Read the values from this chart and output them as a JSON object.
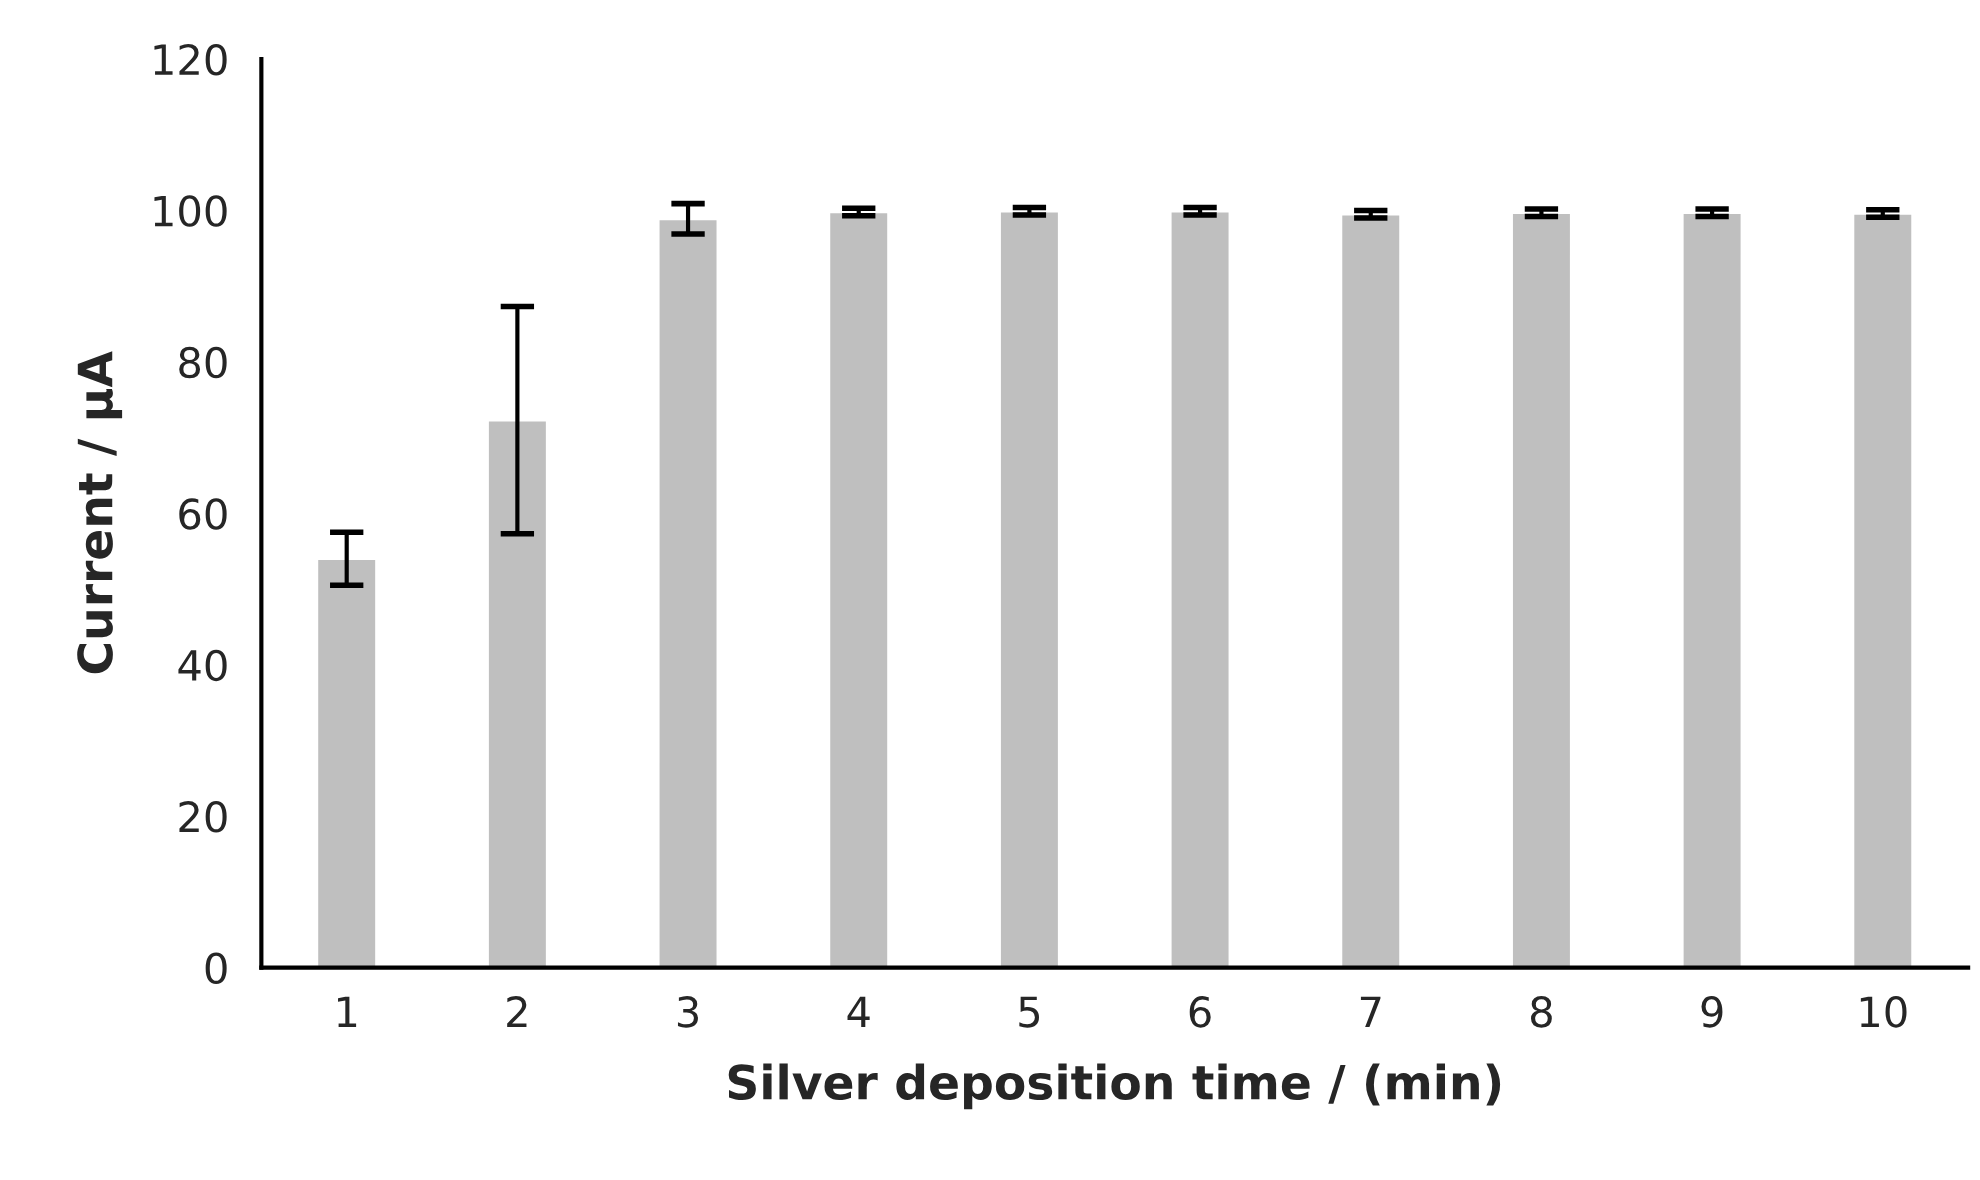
{
  "chart_data": {
    "type": "bar",
    "xlabel": "Silver deposition time / (min)",
    "ylabel": "Current / µA",
    "categories": [
      "1",
      "2",
      "3",
      "4",
      "5",
      "6",
      "7",
      "8",
      "9",
      "10"
    ],
    "values": [
      54,
      72.3,
      98.9,
      99.8,
      99.9,
      99.9,
      99.5,
      99.7,
      99.7,
      99.6
    ],
    "errors": [
      3.5,
      15,
      2,
      0.5,
      0.5,
      0.5,
      0.5,
      0.5,
      0.5,
      0.5
    ],
    "color": "#bfbfbf",
    "ylim": [
      0,
      120
    ],
    "yticks": [
      0,
      20,
      40,
      60,
      80,
      100,
      120
    ],
    "grid": false,
    "legend": false
  }
}
